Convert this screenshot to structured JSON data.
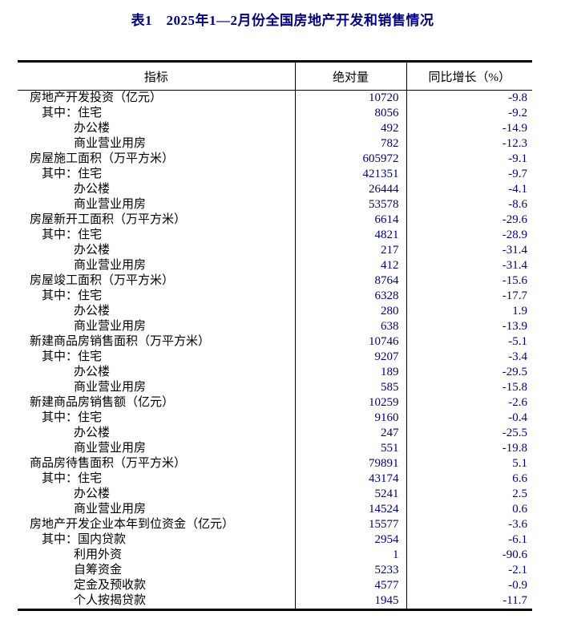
{
  "page": {
    "title": "表1　2025年1—2月份全国房地产开发和销售情况"
  },
  "colors": {
    "title_text": "#000080",
    "body_text": "#000000",
    "number_text": "#000080",
    "border": "#000000",
    "background": "#ffffff"
  },
  "table": {
    "columns": {
      "indicator": "指标",
      "absolute": "绝对量",
      "growth": "同比增长（%）"
    },
    "rows": [
      {
        "indicator": "房地产开发投资（亿元）",
        "level": 0,
        "absolute": "10720",
        "growth": "-9.8"
      },
      {
        "indicator": "其中：住宅",
        "level": 1,
        "absolute": "8056",
        "growth": "-9.2"
      },
      {
        "indicator": "办公楼",
        "level": 2,
        "absolute": "492",
        "growth": "-14.9"
      },
      {
        "indicator": "商业营业用房",
        "level": 2,
        "absolute": "782",
        "growth": "-12.3"
      },
      {
        "indicator": "房屋施工面积（万平方米）",
        "level": 0,
        "absolute": "605972",
        "growth": "-9.1"
      },
      {
        "indicator": "其中：住宅",
        "level": 1,
        "absolute": "421351",
        "growth": "-9.7"
      },
      {
        "indicator": "办公楼",
        "level": 2,
        "absolute": "26444",
        "growth": "-4.1"
      },
      {
        "indicator": "商业营业用房",
        "level": 2,
        "absolute": "53578",
        "growth": "-8.6"
      },
      {
        "indicator": "房屋新开工面积（万平方米）",
        "level": 0,
        "absolute": "6614",
        "growth": "-29.6"
      },
      {
        "indicator": "其中：住宅",
        "level": 1,
        "absolute": "4821",
        "growth": "-28.9"
      },
      {
        "indicator": "办公楼",
        "level": 2,
        "absolute": "217",
        "growth": "-31.4"
      },
      {
        "indicator": "商业营业用房",
        "level": 2,
        "absolute": "412",
        "growth": "-31.4"
      },
      {
        "indicator": "房屋竣工面积（万平方米）",
        "level": 0,
        "absolute": "8764",
        "growth": "-15.6"
      },
      {
        "indicator": "其中：住宅",
        "level": 1,
        "absolute": "6328",
        "growth": "-17.7"
      },
      {
        "indicator": "办公楼",
        "level": 2,
        "absolute": "280",
        "growth": "1.9"
      },
      {
        "indicator": "商业营业用房",
        "level": 2,
        "absolute": "638",
        "growth": "-13.9"
      },
      {
        "indicator": "新建商品房销售面积（万平方米）",
        "level": 0,
        "absolute": "10746",
        "growth": "-5.1"
      },
      {
        "indicator": "其中：住宅",
        "level": 1,
        "absolute": "9207",
        "growth": "-3.4"
      },
      {
        "indicator": "办公楼",
        "level": 2,
        "absolute": "189",
        "growth": "-29.5"
      },
      {
        "indicator": "商业营业用房",
        "level": 2,
        "absolute": "585",
        "growth": "-15.8"
      },
      {
        "indicator": "新建商品房销售额（亿元）",
        "level": 0,
        "absolute": "10259",
        "growth": "-2.6"
      },
      {
        "indicator": "其中：住宅",
        "level": 1,
        "absolute": "9160",
        "growth": "-0.4"
      },
      {
        "indicator": "办公楼",
        "level": 2,
        "absolute": "247",
        "growth": "-25.5"
      },
      {
        "indicator": "商业营业用房",
        "level": 2,
        "absolute": "551",
        "growth": "-19.8"
      },
      {
        "indicator": "商品房待售面积（万平方米）",
        "level": 0,
        "absolute": "79891",
        "growth": "5.1"
      },
      {
        "indicator": "其中：住宅",
        "level": 1,
        "absolute": "43174",
        "growth": "6.6"
      },
      {
        "indicator": "办公楼",
        "level": 2,
        "absolute": "5241",
        "growth": "2.5"
      },
      {
        "indicator": "商业营业用房",
        "level": 2,
        "absolute": "14524",
        "growth": "0.6"
      },
      {
        "indicator": "房地产开发企业本年到位资金（亿元）",
        "level": 0,
        "absolute": "15577",
        "growth": "-3.6"
      },
      {
        "indicator": "其中：国内贷款",
        "level": 1,
        "absolute": "2954",
        "growth": "-6.1"
      },
      {
        "indicator": "利用外资",
        "level": 2,
        "absolute": "1",
        "growth": "-90.6"
      },
      {
        "indicator": "自筹资金",
        "level": 2,
        "absolute": "5233",
        "growth": "-2.1"
      },
      {
        "indicator": "定金及预收款",
        "level": 2,
        "absolute": "4577",
        "growth": "-0.9"
      },
      {
        "indicator": "个人按揭贷款",
        "level": 2,
        "absolute": "1945",
        "growth": "-11.7"
      }
    ]
  }
}
